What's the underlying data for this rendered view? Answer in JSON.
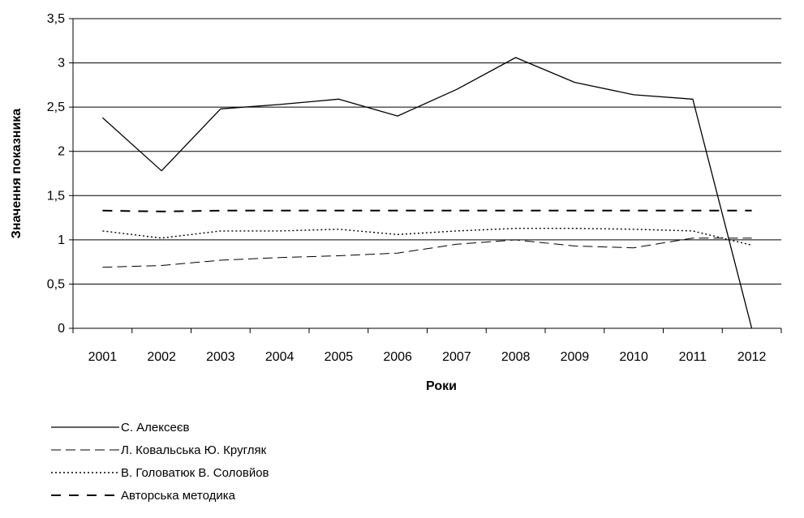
{
  "chart_data": {
    "type": "line",
    "title": "",
    "xlabel": "Роки",
    "ylabel": "Значення показника",
    "categories": [
      "2001",
      "2002",
      "2003",
      "2004",
      "2005",
      "2006",
      "2007",
      "2008",
      "2009",
      "2010",
      "2011",
      "2012"
    ],
    "ylim": [
      0,
      3.5
    ],
    "y_ticks": [
      "0",
      "0,5",
      "1",
      "1,5",
      "2",
      "2,5",
      "3",
      "3,5"
    ],
    "grid": "horizontal",
    "legend_position": "bottom-left",
    "series": [
      {
        "name": "С. Алексеєв",
        "style": "solid",
        "values": [
          2.38,
          1.78,
          2.48,
          2.53,
          2.59,
          2.4,
          2.7,
          3.06,
          2.78,
          2.64,
          2.59,
          0.0
        ]
      },
      {
        "name": "Л. Ковальська Ю. Кругляк",
        "style": "dashed",
        "values": [
          0.69,
          0.71,
          0.77,
          0.8,
          0.82,
          0.85,
          0.95,
          1.0,
          0.93,
          0.91,
          1.02,
          1.02
        ]
      },
      {
        "name": "В. Головатюк В. Соловйов",
        "style": "dotted",
        "values": [
          1.1,
          1.02,
          1.1,
          1.1,
          1.12,
          1.06,
          1.1,
          1.13,
          1.13,
          1.12,
          1.1,
          0.94
        ]
      },
      {
        "name": "Авторська методика",
        "style": "longdash",
        "values": [
          1.33,
          1.32,
          1.33,
          1.33,
          1.33,
          1.33,
          1.33,
          1.33,
          1.33,
          1.33,
          1.33,
          1.33
        ]
      }
    ]
  }
}
